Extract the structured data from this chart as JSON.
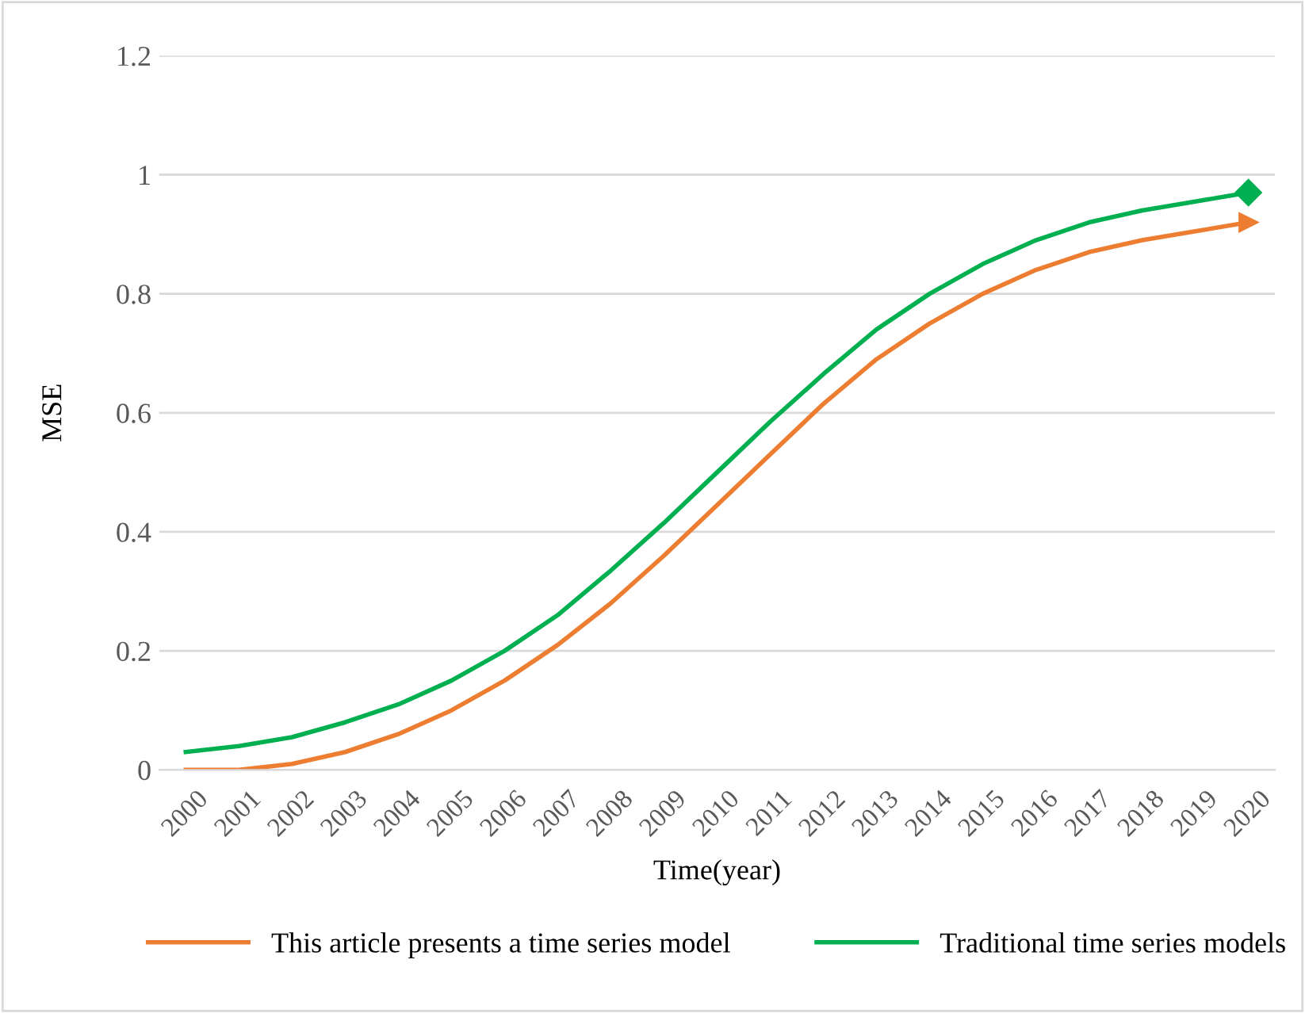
{
  "chart_data": {
    "type": "line",
    "xlabel": "Time(year)",
    "ylabel": "MSE",
    "categories": [
      "2000",
      "2001",
      "2002",
      "2003",
      "2004",
      "2005",
      "2006",
      "2007",
      "2008",
      "2009",
      "2010",
      "2011",
      "2012",
      "2013",
      "2014",
      "2015",
      "2016",
      "2017",
      "2018",
      "2019",
      "2020"
    ],
    "series": [
      {
        "name": "This article presents a time series model",
        "color": "#ed7d31",
        "values": [
          0,
          0,
          0.01,
          0.03,
          0.06,
          0.1,
          0.15,
          0.21,
          0.28,
          0.36,
          0.445,
          0.53,
          0.615,
          0.69,
          0.75,
          0.8,
          0.84,
          0.87,
          0.89,
          0.905,
          0.92
        ]
      },
      {
        "name": "Traditional time series models",
        "color": "#00b050",
        "values": [
          0.03,
          0.04,
          0.055,
          0.08,
          0.11,
          0.15,
          0.2,
          0.26,
          0.335,
          0.415,
          0.5,
          0.585,
          0.665,
          0.74,
          0.8,
          0.85,
          0.89,
          0.92,
          0.94,
          0.955,
          0.97
        ]
      }
    ],
    "ylim": [
      0,
      1.2
    ],
    "yticks": [
      0,
      0.2,
      0.4,
      0.6,
      0.8,
      1,
      1.2
    ],
    "grid": "y",
    "legend": "bottom",
    "line_style": "solid"
  }
}
